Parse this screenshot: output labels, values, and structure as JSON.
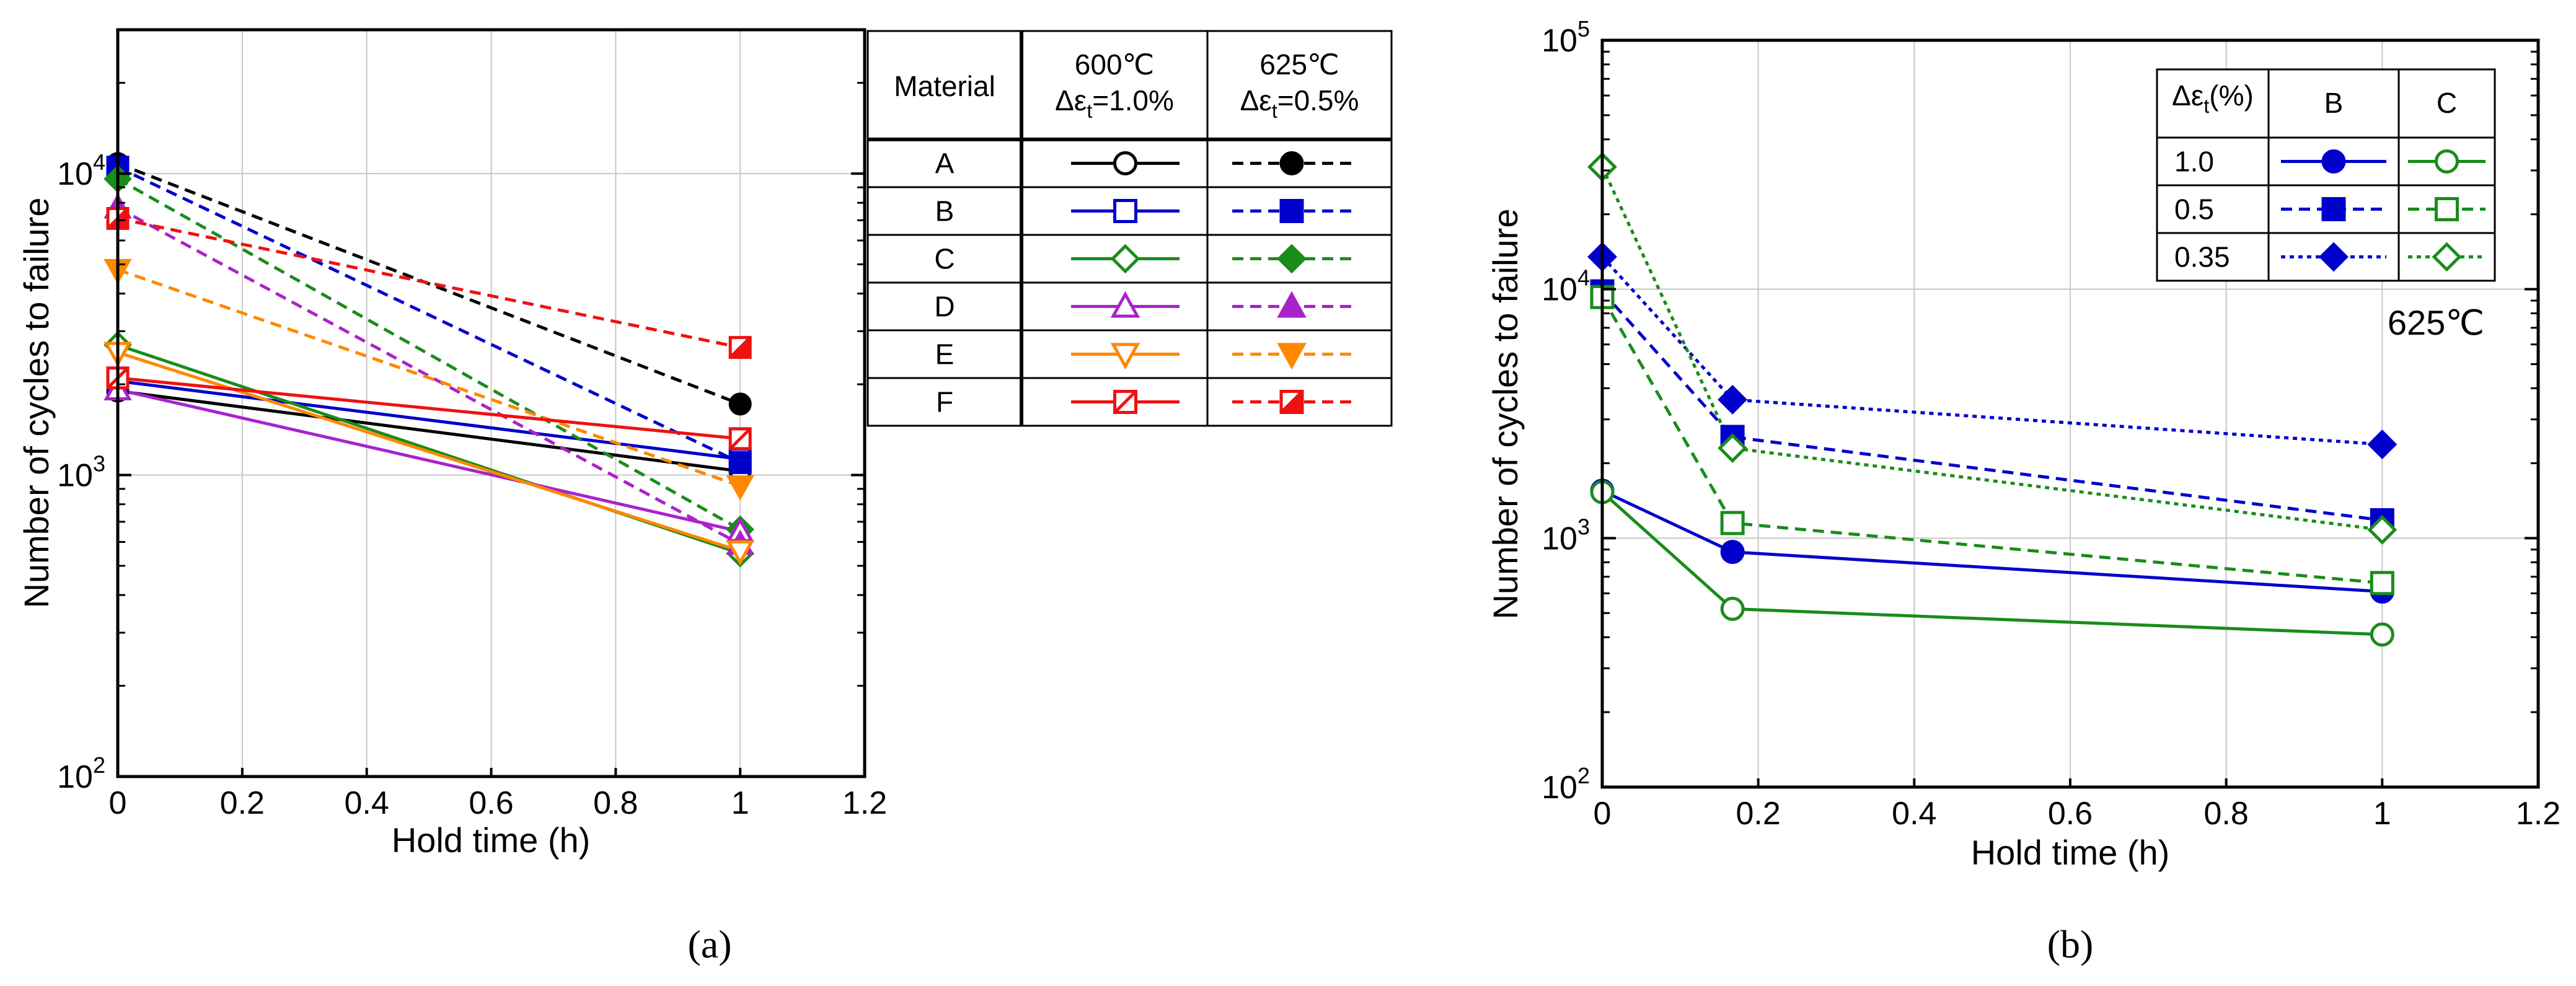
{
  "chart_data": [
    {
      "panel": "a",
      "caption": "(a)",
      "type": "line",
      "xlabel": "Hold time (h)",
      "ylabel": "Number of cycles to failure",
      "x_ticks": [
        "0",
        "0.2",
        "0.4",
        "0.6",
        "0.8",
        "1",
        "1.2"
      ],
      "x_tick_values": [
        0,
        0.2,
        0.4,
        0.6,
        0.8,
        1,
        1.2
      ],
      "xlim": [
        0,
        1.2
      ],
      "y_ticks": [
        {
          "value": 100,
          "base": "10",
          "exp": "2"
        },
        {
          "value": 1000,
          "base": "10",
          "exp": "3"
        },
        {
          "value": 10000,
          "base": "10",
          "exp": "4"
        }
      ],
      "ylim": [
        100,
        30000
      ],
      "yscale": "log",
      "grid": true,
      "series": [
        {
          "name": "A 600℃ Δεt=1.0%",
          "material": "A",
          "color": "#000000",
          "marker": "circle-open",
          "dash": "solid",
          "x": [
            0,
            1
          ],
          "y": [
            1900,
            1030
          ]
        },
        {
          "name": "A 625℃ Δεt=0.5%",
          "material": "A",
          "color": "#000000",
          "marker": "circle-filled",
          "dash": "dashed",
          "x": [
            0,
            1
          ],
          "y": [
            10800,
            1720
          ]
        },
        {
          "name": "B 600℃ Δεt=1.0%",
          "material": "B",
          "color": "#0000cc",
          "marker": "square-open",
          "dash": "solid",
          "x": [
            0,
            1
          ],
          "y": [
            2050,
            1130
          ]
        },
        {
          "name": "B 625℃ Δεt=0.5%",
          "material": "B",
          "color": "#0000cc",
          "marker": "square-filled",
          "dash": "dashed",
          "x": [
            0,
            1
          ],
          "y": [
            10500,
            1100
          ]
        },
        {
          "name": "C 600℃ Δεt=1.0%",
          "material": "C",
          "color": "#1a8c1a",
          "marker": "diamond-open",
          "dash": "solid",
          "x": [
            0,
            1
          ],
          "y": [
            2700,
            550
          ]
        },
        {
          "name": "C 625℃ Δεt=0.5%",
          "material": "C",
          "color": "#1a8c1a",
          "marker": "diamond-filled",
          "dash": "dashed",
          "x": [
            0,
            1
          ],
          "y": [
            9600,
            660
          ]
        },
        {
          "name": "D 600℃ Δεt=1.0%",
          "material": "D",
          "color": "#aa22cc",
          "marker": "triangle-up-open",
          "dash": "solid",
          "x": [
            0,
            1
          ],
          "y": [
            1920,
            650
          ]
        },
        {
          "name": "D 625℃ Δεt=0.5%",
          "material": "D",
          "color": "#aa22cc",
          "marker": "triangle-up-filled",
          "dash": "dashed",
          "x": [
            0,
            1
          ],
          "y": [
            7700,
            590
          ]
        },
        {
          "name": "E 600℃ Δεt=1.0%",
          "material": "E",
          "color": "#ff8800",
          "marker": "triangle-down-open",
          "dash": "solid",
          "x": [
            0,
            1
          ],
          "y": [
            2550,
            560
          ]
        },
        {
          "name": "E 625℃ Δεt=0.5%",
          "material": "E",
          "color": "#ff8800",
          "marker": "triangle-down-filled",
          "dash": "dashed",
          "x": [
            0,
            1
          ],
          "y": [
            4800,
            920
          ]
        },
        {
          "name": "F 600℃ Δεt=1.0%",
          "material": "F",
          "color": "#ee1111",
          "marker": "square-slash-open",
          "dash": "solid",
          "x": [
            0,
            1
          ],
          "y": [
            2100,
            1320
          ]
        },
        {
          "name": "F 625℃ Δεt=0.5%",
          "material": "F",
          "color": "#ee1111",
          "marker": "square-slash-filled",
          "dash": "dashed",
          "x": [
            0,
            1
          ],
          "y": [
            7100,
            2650
          ]
        }
      ],
      "legend": {
        "placement": "right",
        "header": {
          "material": "Material",
          "col1_temp": "600℃",
          "col1_strain": "Δε",
          "col1_sub": "t",
          "col1_val": "=1.0%",
          "col2_temp": "625℃",
          "col2_strain": "Δε",
          "col2_sub": "t",
          "col2_val": "=0.5%"
        },
        "rows": [
          {
            "label": "A",
            "color": "#000000",
            "open": "circle-open",
            "filled": "circle-filled"
          },
          {
            "label": "B",
            "color": "#0000cc",
            "open": "square-open",
            "filled": "square-filled"
          },
          {
            "label": "C",
            "color": "#1a8c1a",
            "open": "diamond-open",
            "filled": "diamond-filled"
          },
          {
            "label": "D",
            "color": "#aa22cc",
            "open": "triangle-up-open",
            "filled": "triangle-up-filled"
          },
          {
            "label": "E",
            "color": "#ff8800",
            "open": "triangle-down-open",
            "filled": "triangle-down-filled"
          },
          {
            "label": "F",
            "color": "#ee1111",
            "open": "square-slash-open",
            "filled": "square-slash-filled"
          }
        ]
      }
    },
    {
      "panel": "b",
      "caption": "(b)",
      "type": "line",
      "xlabel": "Hold time (h)",
      "ylabel": "Number of cycles to failure",
      "annotation": "625℃",
      "x_ticks": [
        "0",
        "0.2",
        "0.4",
        "0.6",
        "0.8",
        "1",
        "1.2"
      ],
      "x_tick_values": [
        0,
        0.2,
        0.4,
        0.6,
        0.8,
        1,
        1.2
      ],
      "xlim": [
        0,
        1.2
      ],
      "y_ticks": [
        {
          "value": 100,
          "base": "10",
          "exp": "2"
        },
        {
          "value": 1000,
          "base": "10",
          "exp": "3"
        },
        {
          "value": 10000,
          "base": "10",
          "exp": "4"
        },
        {
          "value": 100000,
          "base": "10",
          "exp": "5"
        }
      ],
      "ylim": [
        100,
        100000
      ],
      "yscale": "log",
      "grid": true,
      "series": [
        {
          "name": "B Δεt=1.0%",
          "material": "B",
          "strain": "1.0",
          "color": "#0000cc",
          "marker": "circle-filled",
          "dash": "solid",
          "x": [
            0,
            0.167,
            1
          ],
          "y": [
            1550,
            880,
            610
          ]
        },
        {
          "name": "C Δεt=1.0%",
          "material": "C",
          "strain": "1.0",
          "color": "#1a8c1a",
          "marker": "circle-open",
          "dash": "solid",
          "x": [
            0,
            0.167,
            1
          ],
          "y": [
            1530,
            520,
            410
          ]
        },
        {
          "name": "B Δεt=0.5%",
          "material": "B",
          "strain": "0.5",
          "color": "#0000cc",
          "marker": "square-filled",
          "dash": "dashed",
          "x": [
            0,
            0.167,
            1
          ],
          "y": [
            9800,
            2550,
            1180
          ]
        },
        {
          "name": "C Δεt=0.5%",
          "material": "C",
          "strain": "0.5",
          "color": "#1a8c1a",
          "marker": "square-open",
          "dash": "dashed",
          "x": [
            0,
            0.167,
            1
          ],
          "y": [
            9300,
            1150,
            660
          ]
        },
        {
          "name": "B Δεt=0.35%",
          "material": "B",
          "strain": "0.35",
          "color": "#0000cc",
          "marker": "diamond-filled",
          "dash": "dotted",
          "x": [
            0,
            0.167,
            1
          ],
          "y": [
            13500,
            3600,
            2380
          ]
        },
        {
          "name": "C Δεt=0.35%",
          "material": "C",
          "strain": "0.35",
          "color": "#1a8c1a",
          "marker": "diamond-open",
          "dash": "dotted",
          "x": [
            0,
            0.167,
            1
          ],
          "y": [
            31000,
            2300,
            1080
          ]
        }
      ],
      "legend": {
        "placement": "top-right",
        "header": {
          "strain": "Δε",
          "strain_sub": "t",
          "strain_unit": "(%)",
          "col1": "B",
          "col2": "C"
        },
        "rows": [
          {
            "label": "1.0",
            "dash": "solid",
            "b_color": "#0000cc",
            "b_marker": "circle-filled",
            "c_color": "#1a8c1a",
            "c_marker": "circle-open"
          },
          {
            "label": "0.5",
            "dash": "dashed",
            "b_color": "#0000cc",
            "b_marker": "square-filled",
            "c_color": "#1a8c1a",
            "c_marker": "square-open"
          },
          {
            "label": "0.35",
            "dash": "dotted",
            "b_color": "#0000cc",
            "b_marker": "diamond-filled",
            "c_color": "#1a8c1a",
            "c_marker": "diamond-open"
          }
        ]
      }
    }
  ]
}
